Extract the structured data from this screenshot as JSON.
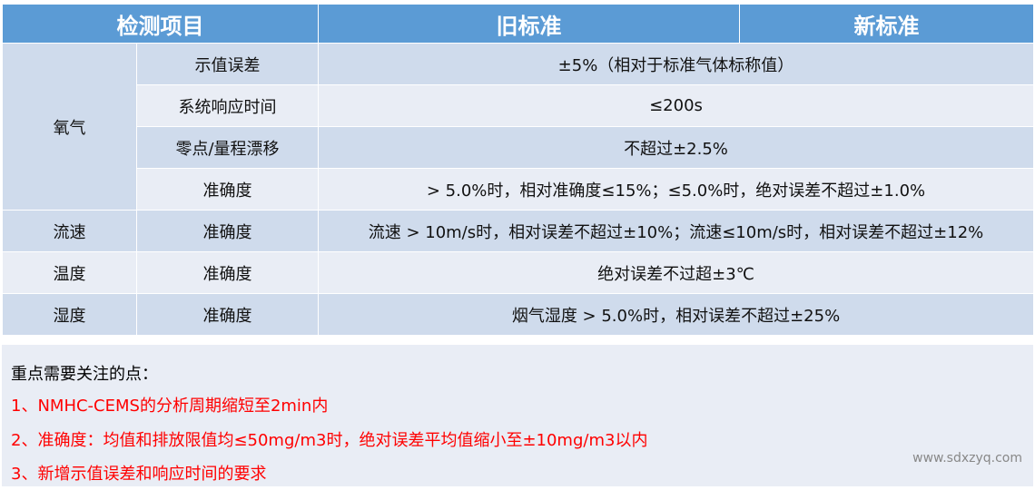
{
  "header": {
    "item": "检测项目",
    "old": "旧标准",
    "new": "新标准"
  },
  "rows": [
    {
      "group": "氧气",
      "item": "示值误差",
      "req": "±5%（相对于标准气体标称值）"
    },
    {
      "item": "系统响应时间",
      "req": "≤200s"
    },
    {
      "item": "零点/量程漂移",
      "req": "不超过±2.5%"
    },
    {
      "item": "准确度",
      "req": "> 5.0%时，相对准确度≤15%；≤5.0%时，绝对误差不超过±1.0%"
    },
    {
      "group": "流速",
      "item": "准确度",
      "req": "流速 > 10m/s时，相对误差不超过±10%；流速≤10m/s时，相对误差不超过±12%"
    },
    {
      "group": "温度",
      "item": "准确度",
      "req": "绝对误差不过超±3℃"
    },
    {
      "group": "湿度",
      "item": "准确度",
      "req": "烟气湿度 > 5.0%时，相对误差不超过±25%"
    }
  ],
  "notes": {
    "title": "重点需要关注的点：",
    "items": [
      "1、NMHC-CEMS的分析周期缩短至2min内",
      "2、准确度：均值和排放限值均≤50mg/m3时，绝对误差平均值缩小至±10mg/m3以内",
      "3、新增示值误差和响应时间的要求"
    ],
    "watermark": "www.sdxzyq.com"
  },
  "colors": {
    "header": "#5b9bd5",
    "row_dark": "#cfdbec",
    "row_light": "#e9edf5",
    "note_red": "#ff0000"
  }
}
